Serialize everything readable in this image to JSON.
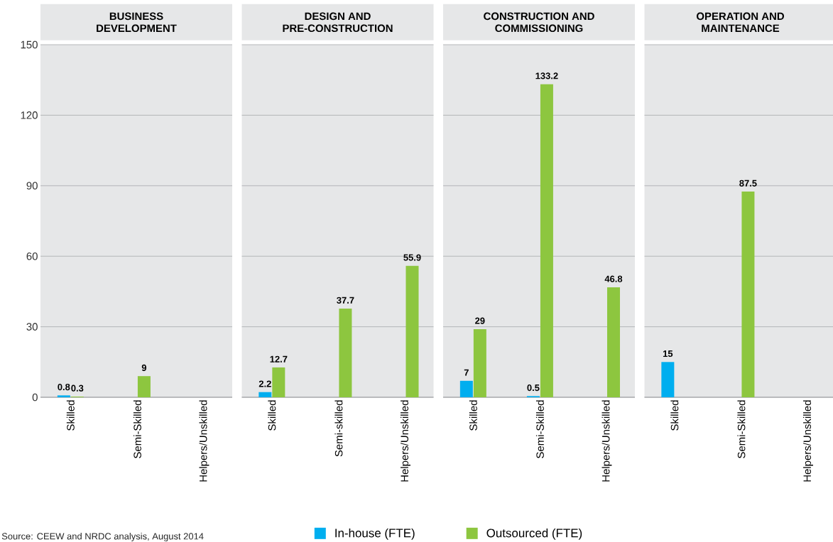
{
  "chart_data": [
    {
      "type": "bar",
      "title": "BUSINESS DEVELOPMENT",
      "categories": [
        "Skilled",
        "Semi-Skilled",
        "Helpers/Unskilled"
      ],
      "series": [
        {
          "color": "#00aeef",
          "values": [
            0.8,
            0,
            0
          ],
          "value_labels": [
            "0.8",
            null,
            null
          ]
        },
        {
          "color": "#8dc63f",
          "values": [
            0.3,
            9,
            0
          ],
          "value_labels": [
            "0.3",
            "9",
            null
          ]
        }
      ],
      "ylim": [
        0,
        150
      ],
      "yticks": [
        0,
        30,
        60,
        90,
        120,
        150
      ],
      "grid": "y",
      "annotations": [
        "Source: CEEW and NRDC analysis, August 2014"
      ]
    },
    {
      "type": "bar",
      "title": "DESIGN AND PRE-CONSTRUCTION",
      "categories": [
        "Skilled",
        "Semi-skilled",
        "Helpers/Unskilled"
      ],
      "series": [
        {
          "name": "In-house (FTE)",
          "color": "#00aeef",
          "values": [
            2.2,
            0,
            0
          ],
          "value_labels": [
            "2.2",
            null,
            null
          ]
        },
        {
          "name": "Outsourced (FTE)",
          "color": "#8dc63f",
          "values": [
            12.7,
            37.7,
            55.9
          ],
          "value_labels": [
            "12.7",
            "37.7",
            "55.9"
          ]
        }
      ],
      "ylim": [
        0,
        150
      ],
      "yticks": [
        0,
        30,
        60,
        90,
        120,
        150
      ],
      "grid": "y",
      "tick_labels": "x",
      "legend": "bottom"
    },
    {
      "type": "bar",
      "title": "CONSTRUCTION AND COMMISSIONING",
      "categories": [
        "Skilled",
        "Semi-Skilled",
        "Helpers/Unskilled"
      ],
      "series": [
        {
          "color": "#00aeef",
          "values": [
            7,
            0.5,
            0
          ],
          "value_labels": [
            "7",
            "0.5",
            null
          ]
        },
        {
          "color": "#8dc63f",
          "values": [
            29,
            133.2,
            46.8
          ],
          "value_labels": [
            "29",
            "133.2",
            "46.8"
          ]
        }
      ],
      "ylim": [
        0,
        150
      ],
      "yticks": [
        0,
        30,
        60,
        90,
        120,
        150
      ],
      "grid": "y",
      "tick_labels": "x"
    },
    {
      "type": "bar",
      "title": "OPERATION AND MAINTENANCE",
      "categories": [
        "Skilled",
        "Semi-Skilled",
        "Helpers/Unskilled"
      ],
      "series": [
        {
          "color": "#00aeef",
          "values": [
            15,
            0,
            0
          ],
          "value_labels": [
            "15",
            null,
            null
          ]
        },
        {
          "color": "#8dc63f",
          "values": [
            0,
            87.5,
            0
          ],
          "value_labels": [
            null,
            "87.5",
            null
          ]
        }
      ],
      "ylim": [
        0,
        150
      ],
      "yticks": [
        0,
        30,
        60,
        90,
        120,
        150
      ],
      "grid": "y",
      "tick_labels": "x"
    }
  ]
}
